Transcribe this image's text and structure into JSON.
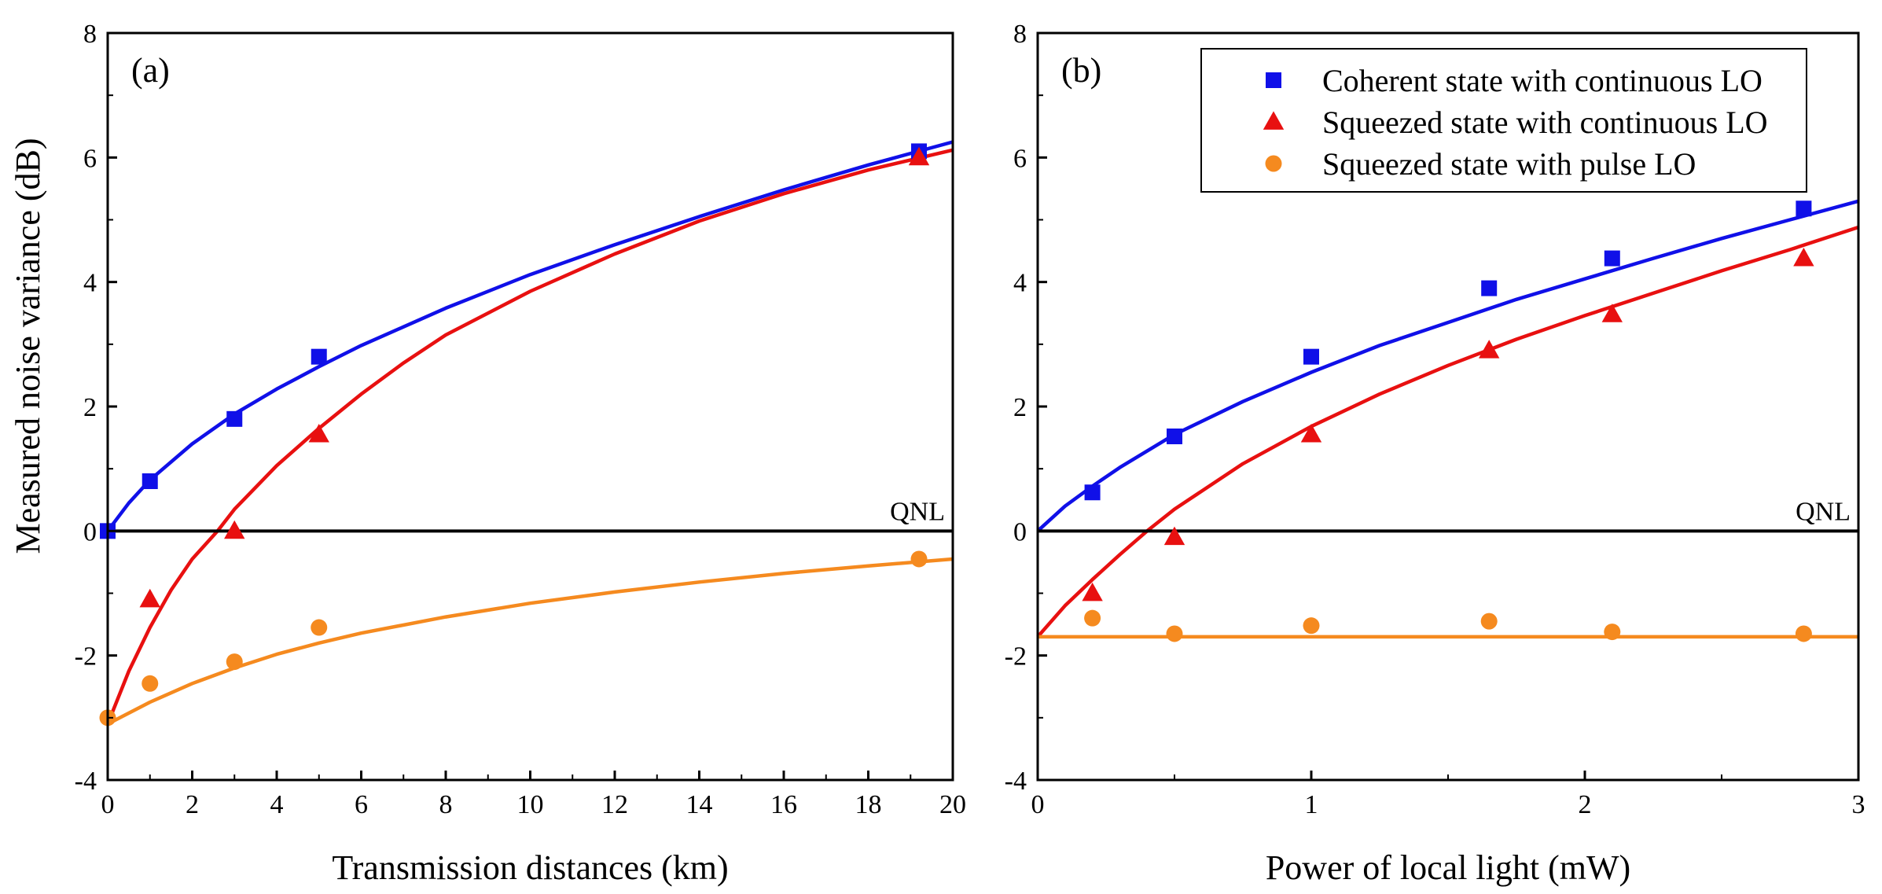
{
  "chart_data": [
    {
      "panel_label": "(a)",
      "type": "scatter",
      "xlabel": "Transmission distances (km)",
      "ylabel": "Measured noise variance (dB)",
      "xlim": [
        0,
        20
      ],
      "ylim": [
        -4,
        8
      ],
      "xticks": [
        0,
        2,
        4,
        6,
        8,
        10,
        12,
        14,
        16,
        18,
        20
      ],
      "yticks": [
        -4,
        -2,
        0,
        2,
        4,
        6,
        8
      ],
      "reference_line": {
        "y": 0,
        "label": "QNL",
        "color": "#000000"
      },
      "series": [
        {
          "name": "Coherent state with continuous LO",
          "marker": "square",
          "color": "#1010e8",
          "points": [
            [
              0,
              0
            ],
            [
              1,
              0.8
            ],
            [
              3,
              1.8
            ],
            [
              5,
              2.8
            ],
            [
              19.2,
              6.1
            ]
          ],
          "fit_curve": [
            [
              0,
              0
            ],
            [
              0.5,
              0.45
            ],
            [
              1,
              0.82
            ],
            [
              2,
              1.4
            ],
            [
              3,
              1.88
            ],
            [
              4,
              2.28
            ],
            [
              5,
              2.64
            ],
            [
              6,
              2.98
            ],
            [
              7,
              3.28
            ],
            [
              8,
              3.58
            ],
            [
              10,
              4.12
            ],
            [
              12,
              4.6
            ],
            [
              14,
              5.05
            ],
            [
              16,
              5.48
            ],
            [
              18,
              5.88
            ],
            [
              20,
              6.25
            ]
          ]
        },
        {
          "name": "Squeezed state with continuous LO",
          "marker": "triangle",
          "color": "#e81010",
          "points": [
            [
              1,
              -1.1
            ],
            [
              3,
              0
            ],
            [
              5,
              1.55
            ],
            [
              19.2,
              6.0
            ]
          ],
          "fit_curve": [
            [
              0,
              -3.1
            ],
            [
              0.5,
              -2.25
            ],
            [
              1,
              -1.55
            ],
            [
              1.5,
              -0.95
            ],
            [
              2,
              -0.45
            ],
            [
              2.6,
              0
            ],
            [
              3,
              0.35
            ],
            [
              4,
              1.05
            ],
            [
              5,
              1.65
            ],
            [
              6,
              2.2
            ],
            [
              7,
              2.7
            ],
            [
              8,
              3.15
            ],
            [
              10,
              3.85
            ],
            [
              12,
              4.45
            ],
            [
              14,
              4.98
            ],
            [
              16,
              5.42
            ],
            [
              18,
              5.8
            ],
            [
              20,
              6.12
            ]
          ]
        },
        {
          "name": "Squeezed state with pulse LO",
          "marker": "circle",
          "color": "#f58a1f",
          "points": [
            [
              0,
              -3.0
            ],
            [
              1,
              -2.45
            ],
            [
              3,
              -2.1
            ],
            [
              5,
              -1.55
            ],
            [
              19.2,
              -0.45
            ]
          ],
          "fit_curve": [
            [
              0,
              -3.1
            ],
            [
              1,
              -2.75
            ],
            [
              2,
              -2.45
            ],
            [
              3,
              -2.2
            ],
            [
              4,
              -1.98
            ],
            [
              5,
              -1.8
            ],
            [
              6,
              -1.64
            ],
            [
              8,
              -1.38
            ],
            [
              10,
              -1.16
            ],
            [
              12,
              -0.98
            ],
            [
              14,
              -0.82
            ],
            [
              16,
              -0.68
            ],
            [
              18,
              -0.56
            ],
            [
              20,
              -0.45
            ]
          ]
        }
      ]
    },
    {
      "panel_label": "(b)",
      "type": "scatter",
      "xlabel": "Power of local light (mW)",
      "ylabel": "",
      "xlim": [
        0,
        3
      ],
      "ylim": [
        -4,
        8
      ],
      "xticks": [
        0,
        1,
        2,
        3
      ],
      "xticks_minor": [
        0.5,
        1.5,
        2.5
      ],
      "yticks": [
        -4,
        -2,
        0,
        2,
        4,
        6,
        8
      ],
      "reference_line": {
        "y": 0,
        "label": "QNL",
        "color": "#000000"
      },
      "legend_position": "top-right",
      "series": [
        {
          "name": "Coherent state with continuous LO",
          "marker": "square",
          "color": "#1010e8",
          "points": [
            [
              0.2,
              0.62
            ],
            [
              0.5,
              1.52
            ],
            [
              1.0,
              2.8
            ],
            [
              1.65,
              3.9
            ],
            [
              2.1,
              4.38
            ],
            [
              2.8,
              5.18
            ]
          ],
          "fit_curve": [
            [
              0,
              0
            ],
            [
              0.1,
              0.4
            ],
            [
              0.2,
              0.72
            ],
            [
              0.3,
              1.02
            ],
            [
              0.5,
              1.55
            ],
            [
              0.75,
              2.08
            ],
            [
              1.0,
              2.55
            ],
            [
              1.25,
              2.98
            ],
            [
              1.5,
              3.35
            ],
            [
              1.75,
              3.72
            ],
            [
              2.0,
              4.05
            ],
            [
              2.25,
              4.38
            ],
            [
              2.5,
              4.7
            ],
            [
              2.75,
              5.0
            ],
            [
              3.0,
              5.3
            ]
          ]
        },
        {
          "name": "Squeezed state with continuous LO",
          "marker": "triangle",
          "color": "#e81010",
          "points": [
            [
              0.2,
              -1.0
            ],
            [
              0.5,
              -0.1
            ],
            [
              1.0,
              1.55
            ],
            [
              1.65,
              2.9
            ],
            [
              2.1,
              3.48
            ],
            [
              2.8,
              4.38
            ]
          ],
          "fit_curve": [
            [
              0,
              -1.7
            ],
            [
              0.1,
              -1.2
            ],
            [
              0.2,
              -0.78
            ],
            [
              0.3,
              -0.38
            ],
            [
              0.4,
              0
            ],
            [
              0.5,
              0.35
            ],
            [
              0.75,
              1.08
            ],
            [
              1.0,
              1.68
            ],
            [
              1.25,
              2.2
            ],
            [
              1.5,
              2.66
            ],
            [
              1.75,
              3.08
            ],
            [
              2.0,
              3.46
            ],
            [
              2.25,
              3.82
            ],
            [
              2.5,
              4.18
            ],
            [
              2.75,
              4.52
            ],
            [
              3.0,
              4.88
            ]
          ]
        },
        {
          "name": "Squeezed state with pulse LO",
          "marker": "circle",
          "color": "#f58a1f",
          "points": [
            [
              0.2,
              -1.4
            ],
            [
              0.5,
              -1.65
            ],
            [
              1.0,
              -1.52
            ],
            [
              1.65,
              -1.45
            ],
            [
              2.1,
              -1.62
            ],
            [
              2.8,
              -1.65
            ]
          ],
          "fit_curve": [
            [
              0,
              -1.7
            ],
            [
              3.0,
              -1.7
            ]
          ]
        }
      ]
    }
  ]
}
